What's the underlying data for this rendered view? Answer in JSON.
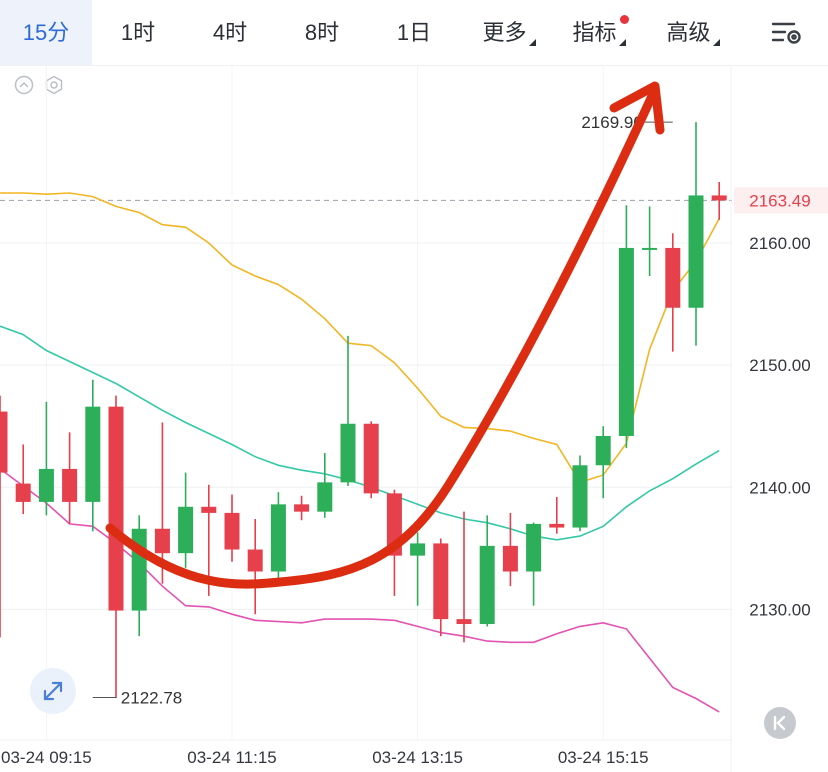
{
  "toolbar": {
    "timeframes": [
      "15分",
      "1时",
      "4时",
      "8时",
      "1日"
    ],
    "active_index": 0,
    "more_label": "更多",
    "indicator_label": "指标",
    "advanced_label": "高级"
  },
  "colors": {
    "up": "#2dae59",
    "down": "#e5404b",
    "ma_fast": "#f2b624",
    "ma_mid": "#34c9a6",
    "ma_slow": "#e253b2",
    "arrow": "#dc2d12",
    "current_price": "#e5404b",
    "accent": "#2f6bd6"
  },
  "chart_data": {
    "type": "candlestick",
    "y_ticks": [
      "2160.00",
      "2150.00",
      "2140.00",
      "2130.00"
    ],
    "y_tick_values": [
      2160,
      2150,
      2140,
      2130
    ],
    "ylim": [
      2119.3,
      2174.5
    ],
    "x_ticks": [
      "03-24 09:15",
      "03-24 11:15",
      "03-24 13:15",
      "03-24 15:15"
    ],
    "x_tick_candle_index": [
      2,
      10,
      18,
      26
    ],
    "current_price": 2163.49,
    "current_price_label": "2163.49",
    "high_label": "2169.90",
    "high_value": 2169.9,
    "high_candle_index": 29,
    "low_label": "2122.78",
    "low_value": 2122.78,
    "low_candle_index": 4,
    "candles": [
      {
        "o": 2146.2,
        "h": 2147.5,
        "l": 2127.7,
        "c": 2141.2
      },
      {
        "o": 2140.3,
        "h": 2143.5,
        "l": 2137.8,
        "c": 2138.8
      },
      {
        "o": 2138.8,
        "h": 2147.0,
        "l": 2137.7,
        "c": 2141.5
      },
      {
        "o": 2141.5,
        "h": 2144.5,
        "l": 2137.0,
        "c": 2138.8
      },
      {
        "o": 2138.8,
        "h": 2148.8,
        "l": 2136.4,
        "c": 2146.6
      },
      {
        "o": 2146.6,
        "h": 2147.5,
        "l": 2122.8,
        "c": 2129.9
      },
      {
        "o": 2129.9,
        "h": 2137.7,
        "l": 2127.8,
        "c": 2136.6
      },
      {
        "o": 2136.6,
        "h": 2145.3,
        "l": 2132.1,
        "c": 2134.6
      },
      {
        "o": 2134.6,
        "h": 2141.2,
        "l": 2133.4,
        "c": 2138.4
      },
      {
        "o": 2138.4,
        "h": 2140.2,
        "l": 2131.1,
        "c": 2137.9
      },
      {
        "o": 2137.9,
        "h": 2139.4,
        "l": 2133.9,
        "c": 2134.9
      },
      {
        "o": 2134.9,
        "h": 2137.4,
        "l": 2129.6,
        "c": 2133.1
      },
      {
        "o": 2133.1,
        "h": 2139.6,
        "l": 2132.6,
        "c": 2138.6
      },
      {
        "o": 2138.6,
        "h": 2139.3,
        "l": 2137.3,
        "c": 2138.0
      },
      {
        "o": 2138.0,
        "h": 2142.8,
        "l": 2137.5,
        "c": 2140.4
      },
      {
        "o": 2140.4,
        "h": 2152.4,
        "l": 2140.1,
        "c": 2145.2
      },
      {
        "o": 2145.2,
        "h": 2145.4,
        "l": 2139.1,
        "c": 2139.5
      },
      {
        "o": 2139.5,
        "h": 2139.8,
        "l": 2131.1,
        "c": 2134.4
      },
      {
        "o": 2134.4,
        "h": 2136.3,
        "l": 2130.3,
        "c": 2135.4
      },
      {
        "o": 2135.4,
        "h": 2135.8,
        "l": 2127.8,
        "c": 2129.2
      },
      {
        "o": 2129.2,
        "h": 2138.0,
        "l": 2127.3,
        "c": 2128.8
      },
      {
        "o": 2128.8,
        "h": 2137.7,
        "l": 2128.6,
        "c": 2135.2
      },
      {
        "o": 2135.2,
        "h": 2137.9,
        "l": 2131.9,
        "c": 2133.1
      },
      {
        "o": 2133.1,
        "h": 2137.1,
        "l": 2130.3,
        "c": 2137.0
      },
      {
        "o": 2137.0,
        "h": 2139.2,
        "l": 2136.2,
        "c": 2136.7
      },
      {
        "o": 2136.7,
        "h": 2142.6,
        "l": 2136.4,
        "c": 2141.8
      },
      {
        "o": 2141.8,
        "h": 2145.0,
        "l": 2139.1,
        "c": 2144.2
      },
      {
        "o": 2144.2,
        "h": 2163.1,
        "l": 2143.2,
        "c": 2159.6
      },
      {
        "o": 2159.6,
        "h": 2163.0,
        "l": 2157.3,
        "c": 2159.6
      },
      {
        "o": 2159.6,
        "h": 2160.8,
        "l": 2151.1,
        "c": 2154.7
      },
      {
        "o": 2154.7,
        "h": 2169.9,
        "l": 2151.6,
        "c": 2163.9
      },
      {
        "o": 2163.9,
        "h": 2165.0,
        "l": 2161.9,
        "c": 2163.49
      }
    ],
    "ma_fast": [
      2164.1,
      2164.1,
      2164.0,
      2164.1,
      2163.8,
      2163.0,
      2162.5,
      2161.5,
      2161.3,
      2160.0,
      2158.2,
      2157.3,
      2156.6,
      2155.4,
      2153.8,
      2151.8,
      2151.6,
      2150.2,
      2148.1,
      2145.8,
      2144.9,
      2144.8,
      2144.6,
      2144.0,
      2143.5,
      2140.4,
      2141.0,
      2143.6,
      2151.3,
      2156.1,
      2158.5,
      2162.0
    ],
    "ma_mid": [
      2153.2,
      2152.5,
      2151.2,
      2150.3,
      2149.4,
      2148.5,
      2147.4,
      2146.3,
      2145.3,
      2144.4,
      2143.5,
      2142.5,
      2141.8,
      2141.4,
      2141.1,
      2140.6,
      2140.0,
      2139.3,
      2138.6,
      2137.9,
      2137.4,
      2137.1,
      2136.6,
      2136.0,
      2135.7,
      2136.0,
      2136.8,
      2138.4,
      2139.7,
      2140.7,
      2141.9,
      2143.0
    ],
    "ma_slow": [
      2141.5,
      2140.1,
      2138.7,
      2137.0,
      2136.8,
      2135.4,
      2133.8,
      2131.9,
      2130.3,
      2130.2,
      2129.6,
      2129.1,
      2129.0,
      2128.9,
      2129.2,
      2129.2,
      2129.2,
      2129.1,
      2128.6,
      2128.1,
      2127.8,
      2127.4,
      2127.3,
      2127.3,
      2128.0,
      2128.6,
      2128.9,
      2128.4,
      2126.0,
      2123.6,
      2122.7,
      2121.6
    ]
  }
}
